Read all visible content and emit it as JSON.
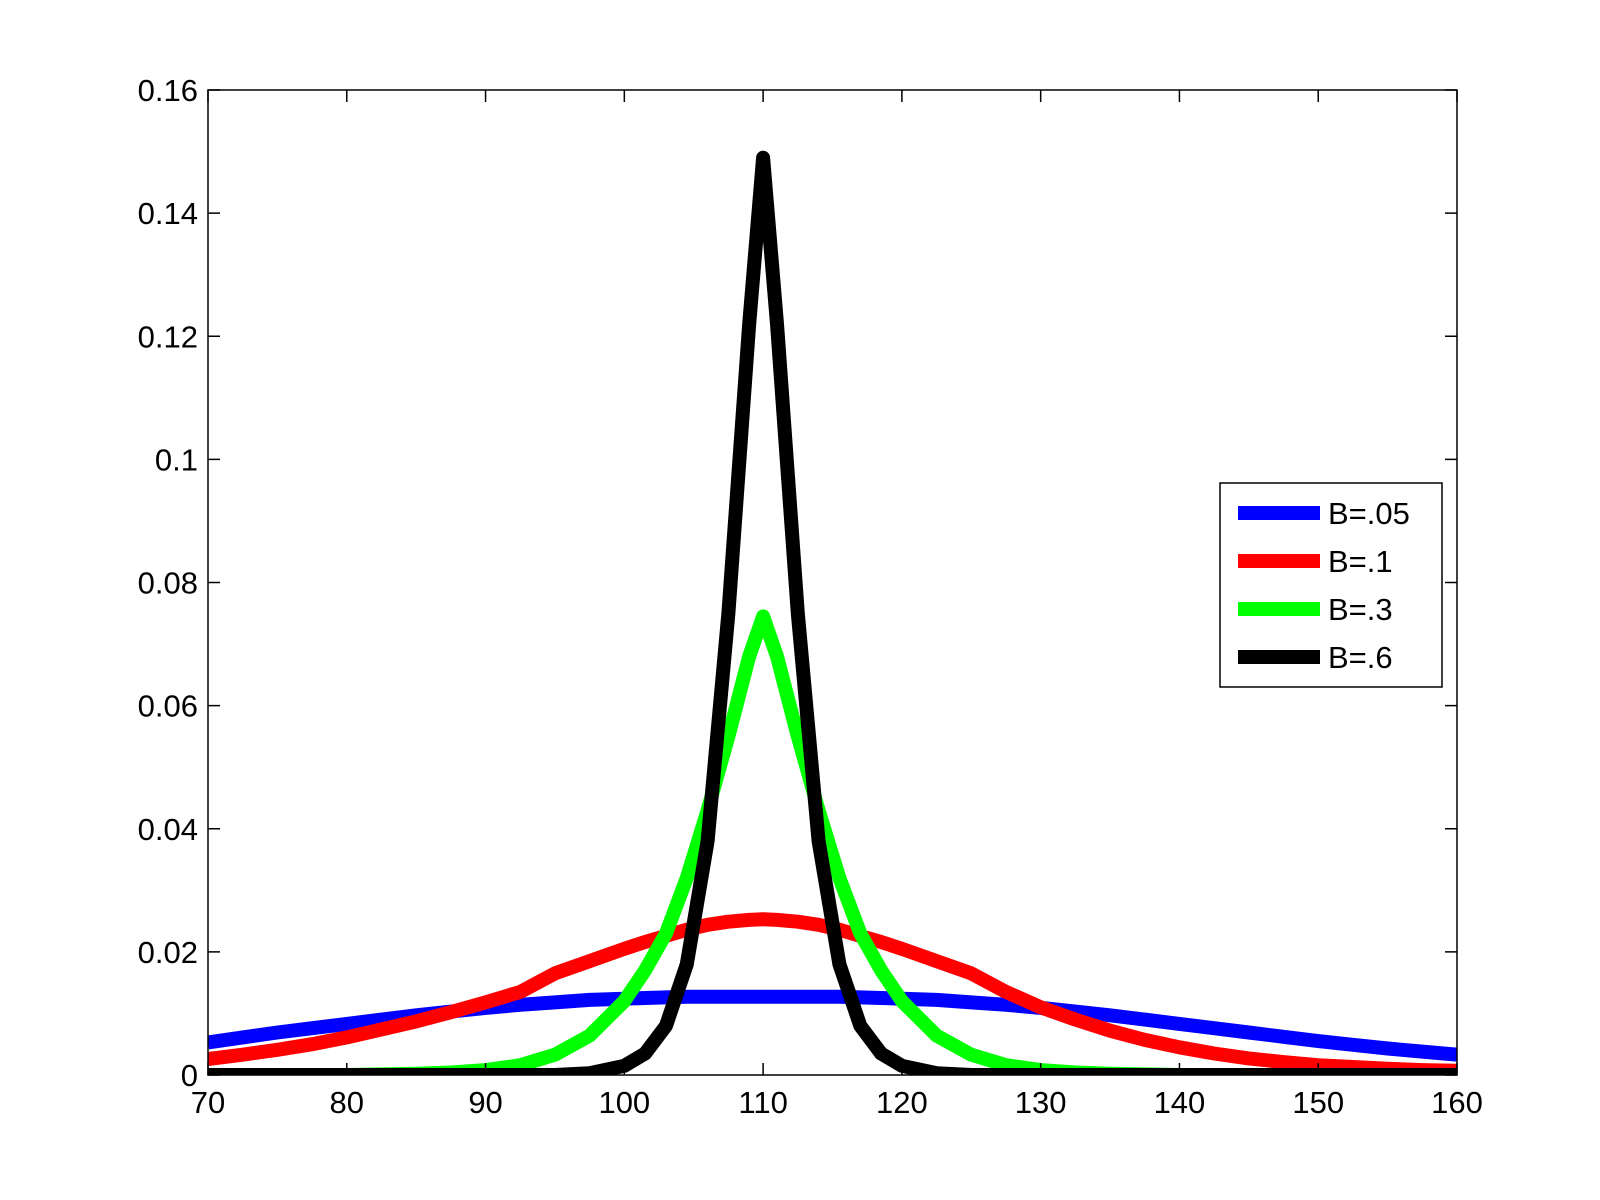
{
  "chart_data": {
    "type": "line",
    "title": "",
    "xlabel": "",
    "ylabel": "",
    "xlim": [
      70,
      160
    ],
    "ylim": [
      0,
      0.16
    ],
    "xticks": [
      70,
      80,
      90,
      100,
      110,
      120,
      130,
      140,
      150,
      160
    ],
    "xtick_labels": [
      "70",
      "80",
      "90",
      "100",
      "110",
      "120",
      "130",
      "140",
      "150",
      "160"
    ],
    "yticks": [
      0,
      0.02,
      0.04,
      0.06,
      0.08,
      0.1,
      0.12,
      0.14,
      0.16
    ],
    "ytick_labels": [
      "0",
      "0.02",
      "0.04",
      "0.06",
      "0.08",
      "0.1",
      "0.12",
      "0.14",
      "0.16"
    ],
    "grid": false,
    "legend_position": "right",
    "x": [
      70,
      72.5,
      75,
      77.5,
      80,
      82.5,
      85,
      87.5,
      90,
      92.5,
      95,
      97.5,
      100,
      101.5,
      103,
      104.5,
      106,
      107.5,
      109,
      110,
      111,
      112.5,
      114,
      115.5,
      117,
      118.5,
      120,
      122.5,
      125,
      127.5,
      130,
      132.5,
      135,
      137.5,
      140,
      142.5,
      145,
      147.5,
      150,
      152.5,
      155,
      157.5,
      160
    ],
    "series": [
      {
        "name": "B=.05",
        "color": "#0000ff",
        "values": [
          0.0053,
          0.0061,
          0.0069,
          0.0076,
          0.0083,
          0.009,
          0.0097,
          0.0103,
          0.0109,
          0.0114,
          0.0118,
          0.0122,
          0.0124,
          0.0125,
          0.0126,
          0.0127,
          0.0127,
          0.0127,
          0.0127,
          0.0127,
          0.0127,
          0.0127,
          0.0127,
          0.0127,
          0.0126,
          0.0125,
          0.0124,
          0.0122,
          0.0118,
          0.0114,
          0.0109,
          0.0103,
          0.0097,
          0.009,
          0.0083,
          0.0076,
          0.0069,
          0.0062,
          0.0055,
          0.0049,
          0.0043,
          0.0038,
          0.0033
        ]
      },
      {
        "name": "B=.1",
        "color": "#ff0000",
        "values": [
          0.0026,
          0.0033,
          0.0041,
          0.005,
          0.0061,
          0.0074,
          0.0087,
          0.0102,
          0.0118,
          0.0135,
          0.0165,
          0.0185,
          0.0205,
          0.0216,
          0.0226,
          0.0236,
          0.0244,
          0.0249,
          0.0252,
          0.0253,
          0.0252,
          0.0249,
          0.0244,
          0.0236,
          0.0226,
          0.0216,
          0.0205,
          0.0185,
          0.0165,
          0.0135,
          0.011,
          0.009,
          0.0072,
          0.0057,
          0.0045,
          0.0035,
          0.0027,
          0.0021,
          0.0016,
          0.0013,
          0.001,
          0.0008,
          0.0007
        ]
      },
      {
        "name": "B=.3",
        "color": "#00ff00",
        "values": [
          0,
          0,
          0,
          0,
          0,
          0.0001,
          0.0002,
          0.0004,
          0.0008,
          0.0016,
          0.0033,
          0.0064,
          0.012,
          0.017,
          0.023,
          0.032,
          0.043,
          0.055,
          0.068,
          0.0745,
          0.068,
          0.055,
          0.043,
          0.032,
          0.023,
          0.017,
          0.012,
          0.0064,
          0.0033,
          0.0016,
          0.0008,
          0.0004,
          0.0002,
          0.0001,
          0,
          0,
          0,
          0,
          0,
          0,
          0,
          0,
          0
        ]
      },
      {
        "name": "B=.6",
        "color": "#000000",
        "values": [
          0,
          0,
          0,
          0,
          0,
          0,
          0,
          0,
          0,
          0,
          0,
          0.0003,
          0.0015,
          0.0035,
          0.008,
          0.018,
          0.038,
          0.075,
          0.122,
          0.149,
          0.122,
          0.075,
          0.038,
          0.018,
          0.008,
          0.0035,
          0.0015,
          0.0003,
          0,
          0,
          0,
          0,
          0,
          0,
          0,
          0,
          0,
          0,
          0,
          0,
          0,
          0,
          0
        ]
      }
    ]
  }
}
